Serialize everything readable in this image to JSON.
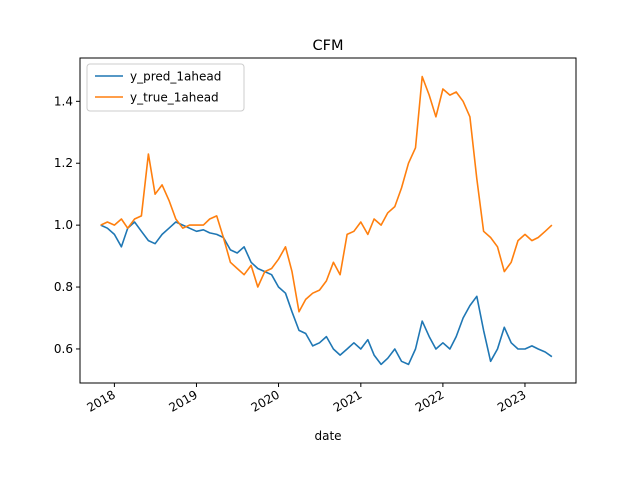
{
  "chart_data": {
    "type": "line",
    "title": "CFM",
    "xlabel": "date",
    "ylabel": "",
    "xlim": [
      "2017-08-01",
      "2023-08-16"
    ],
    "ylim": [
      0.49,
      1.54
    ],
    "x_ticks": [
      "2018-01-01",
      "2019-01-01",
      "2020-01-01",
      "2021-01-01",
      "2022-01-01",
      "2023-01-01"
    ],
    "x_tick_labels": [
      "2018",
      "2019",
      "2020",
      "2021",
      "2022",
      "2023"
    ],
    "y_ticks": [
      0.6,
      0.8,
      1.0,
      1.2,
      1.4
    ],
    "y_tick_labels": [
      "0.6",
      "0.8",
      "1.0",
      "1.2",
      "1.4"
    ],
    "grid": false,
    "legend_position": "top-left",
    "series": [
      {
        "name": "y_pred_1ahead",
        "color": "#1f77b4",
        "points": [
          [
            "2017-11-01",
            1.0
          ],
          [
            "2017-12-01",
            0.99
          ],
          [
            "2018-01-01",
            0.97
          ],
          [
            "2018-02-01",
            0.93
          ],
          [
            "2018-03-01",
            0.99
          ],
          [
            "2018-04-01",
            1.01
          ],
          [
            "2018-05-01",
            0.98
          ],
          [
            "2018-06-01",
            0.95
          ],
          [
            "2018-07-01",
            0.94
          ],
          [
            "2018-08-01",
            0.97
          ],
          [
            "2018-09-01",
            0.99
          ],
          [
            "2018-10-01",
            1.01
          ],
          [
            "2018-11-01",
            1.0
          ],
          [
            "2018-12-01",
            0.99
          ],
          [
            "2019-01-01",
            0.98
          ],
          [
            "2019-02-01",
            0.985
          ],
          [
            "2019-03-01",
            0.975
          ],
          [
            "2019-04-01",
            0.97
          ],
          [
            "2019-05-01",
            0.96
          ],
          [
            "2019-06-01",
            0.92
          ],
          [
            "2019-07-01",
            0.91
          ],
          [
            "2019-08-01",
            0.93
          ],
          [
            "2019-09-01",
            0.88
          ],
          [
            "2019-10-01",
            0.86
          ],
          [
            "2019-11-01",
            0.85
          ],
          [
            "2019-12-01",
            0.84
          ],
          [
            "2020-01-01",
            0.8
          ],
          [
            "2020-02-01",
            0.78
          ],
          [
            "2020-03-01",
            0.72
          ],
          [
            "2020-04-01",
            0.66
          ],
          [
            "2020-05-01",
            0.65
          ],
          [
            "2020-06-01",
            0.61
          ],
          [
            "2020-07-01",
            0.62
          ],
          [
            "2020-08-01",
            0.64
          ],
          [
            "2020-09-01",
            0.6
          ],
          [
            "2020-10-01",
            0.58
          ],
          [
            "2020-11-01",
            0.6
          ],
          [
            "2020-12-01",
            0.62
          ],
          [
            "2021-01-01",
            0.6
          ],
          [
            "2021-02-01",
            0.63
          ],
          [
            "2021-03-01",
            0.58
          ],
          [
            "2021-04-01",
            0.55
          ],
          [
            "2021-05-01",
            0.57
          ],
          [
            "2021-06-01",
            0.6
          ],
          [
            "2021-07-01",
            0.56
          ],
          [
            "2021-08-01",
            0.55
          ],
          [
            "2021-09-01",
            0.6
          ],
          [
            "2021-10-01",
            0.69
          ],
          [
            "2021-11-01",
            0.64
          ],
          [
            "2021-12-01",
            0.6
          ],
          [
            "2022-01-01",
            0.62
          ],
          [
            "2022-02-01",
            0.6
          ],
          [
            "2022-03-01",
            0.64
          ],
          [
            "2022-04-01",
            0.7
          ],
          [
            "2022-05-01",
            0.74
          ],
          [
            "2022-06-01",
            0.77
          ],
          [
            "2022-07-01",
            0.66
          ],
          [
            "2022-08-01",
            0.56
          ],
          [
            "2022-09-01",
            0.6
          ],
          [
            "2022-10-01",
            0.67
          ],
          [
            "2022-11-01",
            0.62
          ],
          [
            "2022-12-01",
            0.6
          ],
          [
            "2023-01-01",
            0.6
          ],
          [
            "2023-02-01",
            0.61
          ],
          [
            "2023-03-01",
            0.6
          ],
          [
            "2023-04-01",
            0.59
          ],
          [
            "2023-05-01",
            0.575
          ]
        ]
      },
      {
        "name": "y_true_1ahead",
        "color": "#ff7f0e",
        "points": [
          [
            "2017-11-01",
            1.0
          ],
          [
            "2017-12-01",
            1.01
          ],
          [
            "2018-01-01",
            1.0
          ],
          [
            "2018-02-01",
            1.02
          ],
          [
            "2018-03-01",
            0.99
          ],
          [
            "2018-04-01",
            1.02
          ],
          [
            "2018-05-01",
            1.03
          ],
          [
            "2018-06-01",
            1.23
          ],
          [
            "2018-07-01",
            1.1
          ],
          [
            "2018-08-01",
            1.13
          ],
          [
            "2018-09-01",
            1.08
          ],
          [
            "2018-10-01",
            1.02
          ],
          [
            "2018-11-01",
            0.99
          ],
          [
            "2018-12-01",
            1.0
          ],
          [
            "2019-01-01",
            1.0
          ],
          [
            "2019-02-01",
            1.0
          ],
          [
            "2019-03-01",
            1.02
          ],
          [
            "2019-04-01",
            1.03
          ],
          [
            "2019-05-01",
            0.96
          ],
          [
            "2019-06-01",
            0.88
          ],
          [
            "2019-07-01",
            0.86
          ],
          [
            "2019-08-01",
            0.84
          ],
          [
            "2019-09-01",
            0.87
          ],
          [
            "2019-10-01",
            0.8
          ],
          [
            "2019-11-01",
            0.85
          ],
          [
            "2019-12-01",
            0.86
          ],
          [
            "2020-01-01",
            0.89
          ],
          [
            "2020-02-01",
            0.93
          ],
          [
            "2020-03-01",
            0.85
          ],
          [
            "2020-04-01",
            0.72
          ],
          [
            "2020-05-01",
            0.76
          ],
          [
            "2020-06-01",
            0.78
          ],
          [
            "2020-07-01",
            0.79
          ],
          [
            "2020-08-01",
            0.82
          ],
          [
            "2020-09-01",
            0.88
          ],
          [
            "2020-10-01",
            0.84
          ],
          [
            "2020-11-01",
            0.97
          ],
          [
            "2020-12-01",
            0.98
          ],
          [
            "2021-01-01",
            1.01
          ],
          [
            "2021-02-01",
            0.97
          ],
          [
            "2021-03-01",
            1.02
          ],
          [
            "2021-04-01",
            1.0
          ],
          [
            "2021-05-01",
            1.04
          ],
          [
            "2021-06-01",
            1.06
          ],
          [
            "2021-07-01",
            1.12
          ],
          [
            "2021-08-01",
            1.2
          ],
          [
            "2021-09-01",
            1.25
          ],
          [
            "2021-10-01",
            1.48
          ],
          [
            "2021-11-01",
            1.42
          ],
          [
            "2021-12-01",
            1.35
          ],
          [
            "2022-01-01",
            1.44
          ],
          [
            "2022-02-01",
            1.42
          ],
          [
            "2022-03-01",
            1.43
          ],
          [
            "2022-04-01",
            1.4
          ],
          [
            "2022-05-01",
            1.35
          ],
          [
            "2022-06-01",
            1.15
          ],
          [
            "2022-07-01",
            0.98
          ],
          [
            "2022-08-01",
            0.96
          ],
          [
            "2022-09-01",
            0.93
          ],
          [
            "2022-10-01",
            0.85
          ],
          [
            "2022-11-01",
            0.88
          ],
          [
            "2022-12-01",
            0.95
          ],
          [
            "2023-01-01",
            0.97
          ],
          [
            "2023-02-01",
            0.95
          ],
          [
            "2023-03-01",
            0.96
          ],
          [
            "2023-04-01",
            0.98
          ],
          [
            "2023-05-01",
            1.0
          ]
        ]
      }
    ]
  }
}
